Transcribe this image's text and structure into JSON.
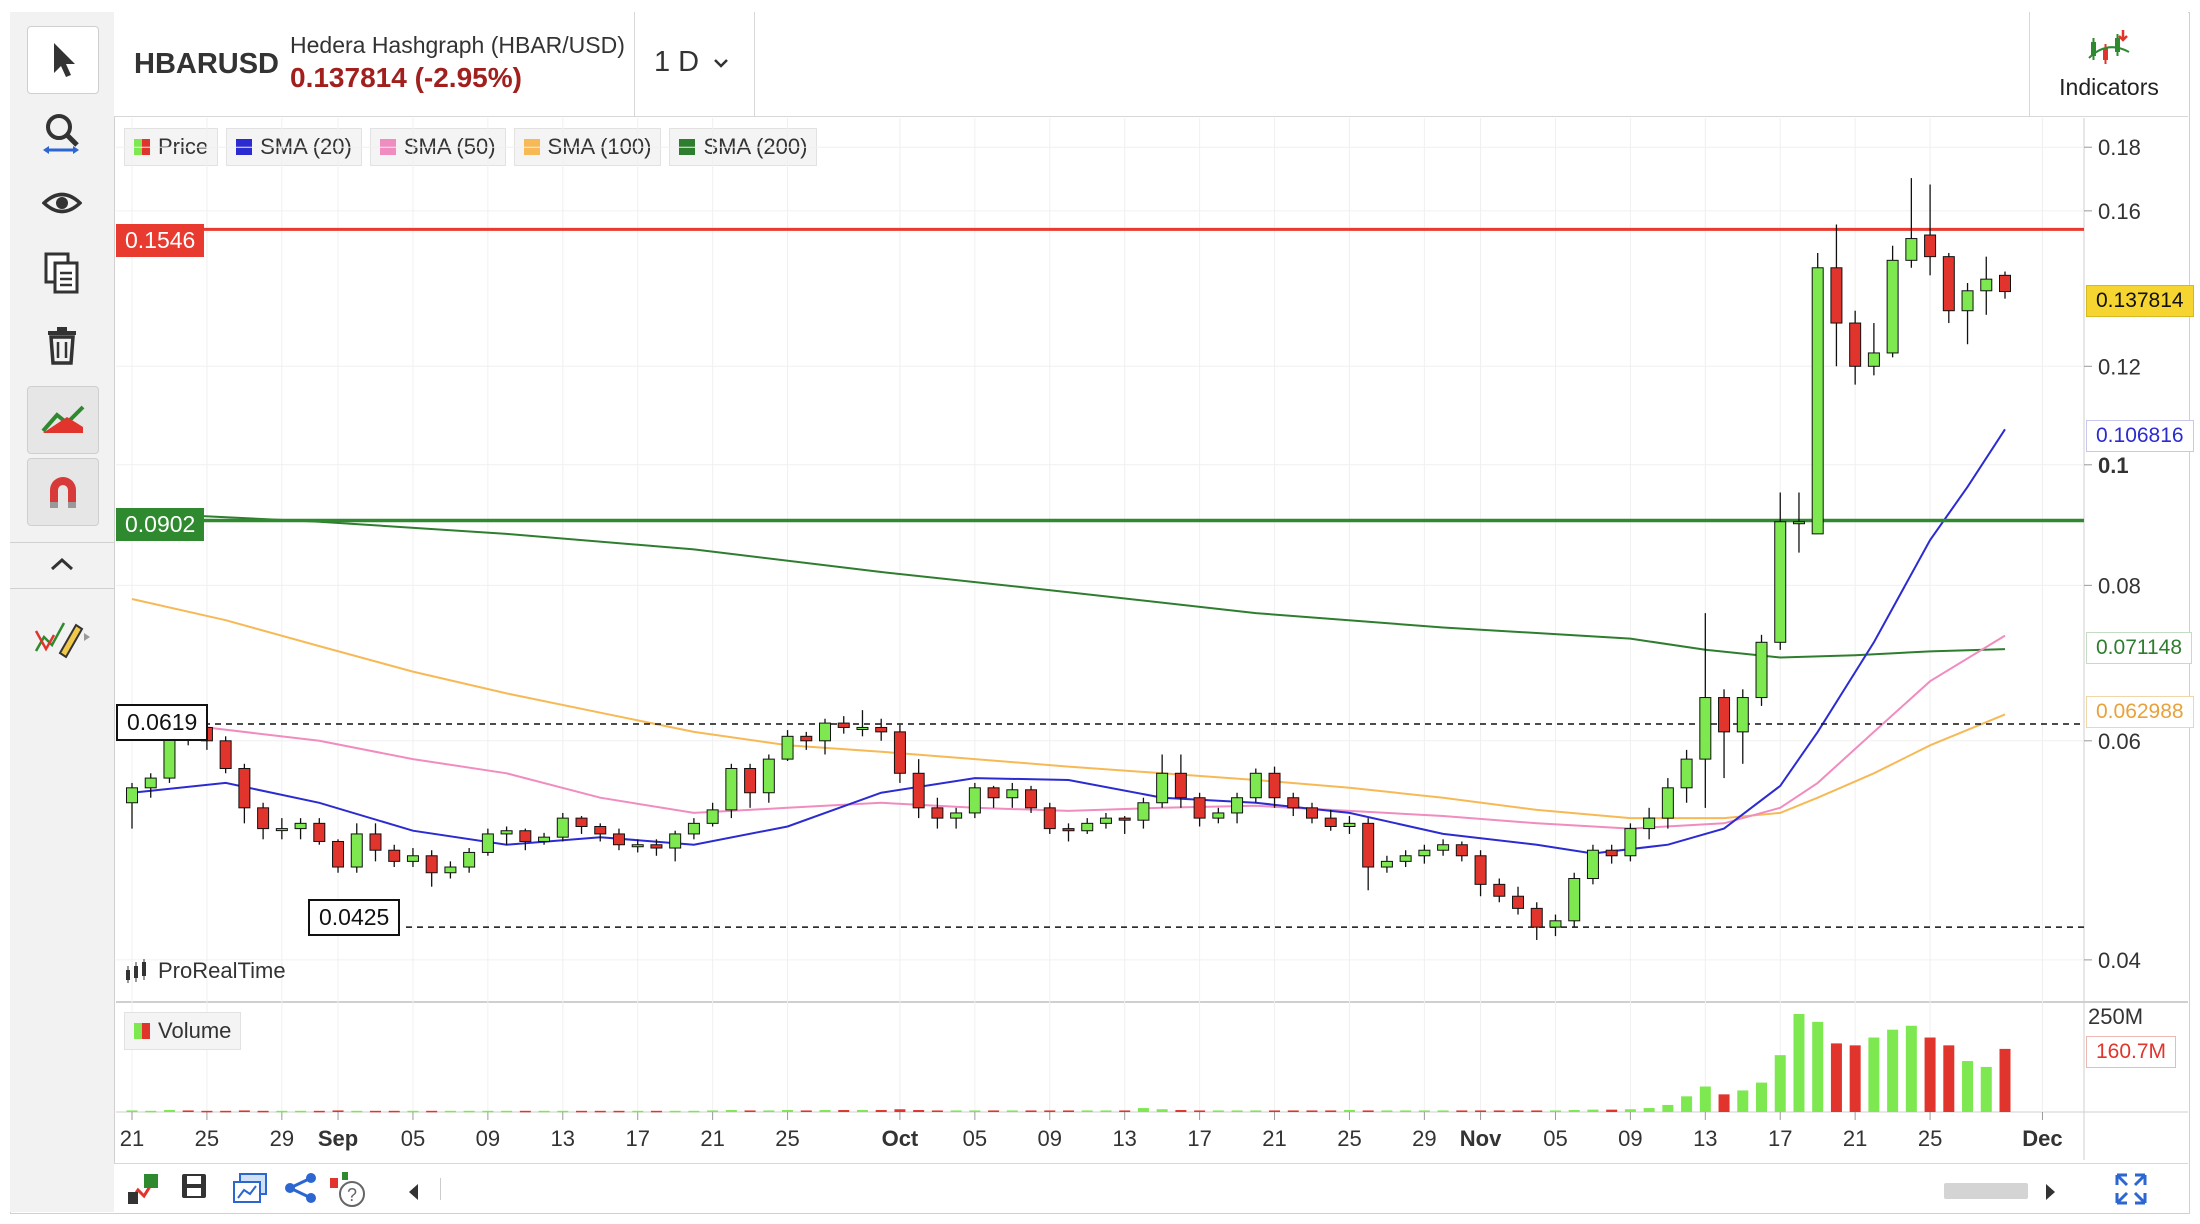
{
  "header": {
    "symbol": "HBARUSD",
    "name": "Hedera Hashgraph (HBAR/USD)",
    "quote": "0.137814 (-2.95%)",
    "period": "1 D",
    "indicators_label": "Indicators"
  },
  "toolbar": {
    "tools": [
      "pointer-icon",
      "zoom-icon",
      "eye-icon",
      "copy-icon",
      "trash-icon",
      "trend-icon",
      "magnet-icon",
      "collapse-icon",
      "drawing-icon"
    ]
  },
  "legend": [
    {
      "label": "Price",
      "color": "#3cb73c"
    },
    {
      "label": "SMA (20)",
      "color": "#2b2bd1"
    },
    {
      "label": "SMA (50)",
      "color": "#f08cc0"
    },
    {
      "label": "SMA (100)",
      "color": "#f7b955"
    },
    {
      "label": "SMA (200)",
      "color": "#2f7d2f"
    }
  ],
  "levels": {
    "resistance": "0.1546",
    "support": "0.0902",
    "dashed_high": "0.0619",
    "dashed_low": "0.0425"
  },
  "right_tags": {
    "last": "0.137814",
    "sma20": "0.106816",
    "sma200": "0.071148",
    "sma100": "0.062988"
  },
  "brand": "ProRealTime",
  "volume": {
    "label": "Volume",
    "max_label": "250M",
    "last_label": "160.7M"
  },
  "colors": {
    "up": "#7de84f",
    "down": "#e0342c",
    "resistance": "#e83a2f",
    "support": "#2f8a2f",
    "quote": "#a1201d"
  },
  "chart_data": {
    "type": "candlestick",
    "y_scale": "log",
    "ylim": [
      0.037,
      0.19
    ],
    "y_ticks": [
      "0.04",
      "0.06",
      "0.08",
      "0.1",
      "0.12",
      "0.16",
      "0.18"
    ],
    "x_ticks": [
      "21",
      "25",
      "29",
      "Sep",
      "05",
      "09",
      "13",
      "17",
      "21",
      "25",
      "Oct",
      "05",
      "09",
      "13",
      "17",
      "21",
      "25",
      "29",
      "Nov",
      "05",
      "09",
      "13",
      "17",
      "21",
      "25",
      "Dec"
    ],
    "x_tick_days": [
      0,
      4,
      8,
      11,
      15,
      19,
      23,
      27,
      31,
      35,
      41,
      45,
      49,
      53,
      57,
      61,
      65,
      69,
      72,
      76,
      80,
      84,
      88,
      92,
      96,
      102
    ],
    "candles": [
      [
        0,
        0.0535,
        0.055,
        0.051,
        0.0555
      ],
      [
        1,
        0.055,
        0.056,
        0.054,
        0.0565
      ],
      [
        2,
        0.056,
        0.062,
        0.0555,
        0.0625
      ],
      [
        3,
        0.062,
        0.0615,
        0.0595,
        0.063
      ],
      [
        4,
        0.0615,
        0.06,
        0.059,
        0.062
      ],
      [
        5,
        0.06,
        0.057,
        0.0565,
        0.0605
      ],
      [
        6,
        0.057,
        0.053,
        0.0515,
        0.0575
      ],
      [
        7,
        0.053,
        0.051,
        0.05,
        0.0535
      ],
      [
        8,
        0.051,
        0.051,
        0.05,
        0.052
      ],
      [
        9,
        0.051,
        0.0515,
        0.05,
        0.052
      ],
      [
        10,
        0.0515,
        0.0498,
        0.0495,
        0.052
      ],
      [
        11,
        0.0498,
        0.0475,
        0.047,
        0.05
      ],
      [
        12,
        0.0475,
        0.0505,
        0.047,
        0.0515
      ],
      [
        13,
        0.0505,
        0.049,
        0.048,
        0.0515
      ],
      [
        14,
        0.049,
        0.048,
        0.0475,
        0.0495
      ],
      [
        15,
        0.048,
        0.0485,
        0.0475,
        0.0492
      ],
      [
        16,
        0.0485,
        0.047,
        0.0458,
        0.049
      ],
      [
        17,
        0.047,
        0.0475,
        0.0465,
        0.048
      ],
      [
        18,
        0.0475,
        0.0488,
        0.047,
        0.0492
      ],
      [
        19,
        0.0488,
        0.0505,
        0.0485,
        0.051
      ],
      [
        20,
        0.0505,
        0.0508,
        0.0495,
        0.0512
      ],
      [
        21,
        0.0508,
        0.0498,
        0.049,
        0.051
      ],
      [
        22,
        0.0498,
        0.0502,
        0.0495,
        0.0506
      ],
      [
        23,
        0.0502,
        0.052,
        0.0498,
        0.0525
      ],
      [
        24,
        0.052,
        0.0512,
        0.0505,
        0.0522
      ],
      [
        25,
        0.0512,
        0.0505,
        0.0498,
        0.0515
      ],
      [
        26,
        0.0505,
        0.0495,
        0.049,
        0.051
      ],
      [
        27,
        0.0495,
        0.0495,
        0.0488,
        0.05
      ],
      [
        28,
        0.0495,
        0.0492,
        0.0485,
        0.05
      ],
      [
        29,
        0.0492,
        0.0505,
        0.048,
        0.0508
      ],
      [
        30,
        0.0505,
        0.0515,
        0.05,
        0.052
      ],
      [
        31,
        0.0515,
        0.0528,
        0.0512,
        0.0535
      ],
      [
        32,
        0.0528,
        0.057,
        0.052,
        0.0575
      ],
      [
        33,
        0.057,
        0.0545,
        0.053,
        0.0575
      ],
      [
        34,
        0.0545,
        0.058,
        0.0535,
        0.0585
      ],
      [
        35,
        0.058,
        0.0605,
        0.0578,
        0.0612
      ],
      [
        36,
        0.0605,
        0.06,
        0.059,
        0.061
      ],
      [
        37,
        0.06,
        0.062,
        0.0585,
        0.0625
      ],
      [
        38,
        0.062,
        0.0615,
        0.0608,
        0.0628
      ],
      [
        39,
        0.0615,
        0.0615,
        0.0605,
        0.0635
      ],
      [
        40,
        0.0615,
        0.061,
        0.06,
        0.0625
      ],
      [
        41,
        0.061,
        0.0565,
        0.0555,
        0.0618
      ],
      [
        42,
        0.0565,
        0.053,
        0.052,
        0.058
      ],
      [
        43,
        0.053,
        0.052,
        0.051,
        0.054
      ],
      [
        44,
        0.052,
        0.0525,
        0.051,
        0.053
      ],
      [
        45,
        0.0525,
        0.055,
        0.052,
        0.0555
      ],
      [
        46,
        0.055,
        0.054,
        0.053,
        0.0552
      ],
      [
        47,
        0.054,
        0.0548,
        0.053,
        0.0555
      ],
      [
        48,
        0.0548,
        0.053,
        0.0525,
        0.0552
      ],
      [
        49,
        0.053,
        0.051,
        0.0505,
        0.0535
      ],
      [
        50,
        0.051,
        0.0508,
        0.0498,
        0.0515
      ],
      [
        51,
        0.0508,
        0.0515,
        0.0505,
        0.052
      ],
      [
        52,
        0.0515,
        0.052,
        0.051,
        0.0525
      ],
      [
        53,
        0.052,
        0.0518,
        0.0505,
        0.0522
      ],
      [
        54,
        0.0518,
        0.0535,
        0.051,
        0.054
      ],
      [
        55,
        0.0535,
        0.0565,
        0.053,
        0.0585
      ],
      [
        56,
        0.0565,
        0.054,
        0.053,
        0.0585
      ],
      [
        57,
        0.054,
        0.052,
        0.0512,
        0.0545
      ],
      [
        58,
        0.052,
        0.0525,
        0.0515,
        0.053
      ],
      [
        59,
        0.0525,
        0.054,
        0.0515,
        0.0545
      ],
      [
        60,
        0.054,
        0.0565,
        0.0535,
        0.057
      ],
      [
        61,
        0.0565,
        0.054,
        0.053,
        0.0572
      ],
      [
        62,
        0.054,
        0.053,
        0.0522,
        0.0545
      ],
      [
        63,
        0.053,
        0.052,
        0.0515,
        0.0535
      ],
      [
        64,
        0.052,
        0.0512,
        0.0508,
        0.0528
      ],
      [
        65,
        0.0512,
        0.0515,
        0.0505,
        0.0522
      ],
      [
        66,
        0.0515,
        0.0475,
        0.0455,
        0.052
      ],
      [
        67,
        0.0475,
        0.048,
        0.047,
        0.0485
      ],
      [
        68,
        0.048,
        0.0485,
        0.0475,
        0.049
      ],
      [
        69,
        0.0485,
        0.049,
        0.0478,
        0.0495
      ],
      [
        70,
        0.049,
        0.0495,
        0.0485,
        0.05
      ],
      [
        71,
        0.0495,
        0.0485,
        0.048,
        0.0498
      ],
      [
        72,
        0.0485,
        0.046,
        0.045,
        0.049
      ],
      [
        73,
        0.046,
        0.045,
        0.0445,
        0.0465
      ],
      [
        74,
        0.045,
        0.044,
        0.0435,
        0.0458
      ],
      [
        75,
        0.044,
        0.0425,
        0.0415,
        0.0445
      ],
      [
        76,
        0.0425,
        0.043,
        0.0418,
        0.0435
      ],
      [
        77,
        0.043,
        0.0465,
        0.0425,
        0.047
      ],
      [
        78,
        0.0465,
        0.049,
        0.046,
        0.0495
      ],
      [
        79,
        0.049,
        0.0485,
        0.0478,
        0.0495
      ],
      [
        80,
        0.0485,
        0.051,
        0.048,
        0.0515
      ],
      [
        81,
        0.051,
        0.052,
        0.05,
        0.053
      ],
      [
        82,
        0.052,
        0.055,
        0.051,
        0.056
      ],
      [
        83,
        0.055,
        0.058,
        0.0535,
        0.059
      ],
      [
        84,
        0.058,
        0.065,
        0.053,
        0.076
      ],
      [
        85,
        0.065,
        0.061,
        0.056,
        0.066
      ],
      [
        86,
        0.061,
        0.065,
        0.0575,
        0.066
      ],
      [
        87,
        0.065,
        0.072,
        0.064,
        0.073
      ],
      [
        88,
        0.072,
        0.09,
        0.071,
        0.095
      ],
      [
        89,
        0.09,
        0.09,
        0.085,
        0.095
      ],
      [
        90,
        0.088,
        0.144,
        0.088,
        0.148
      ],
      [
        91,
        0.144,
        0.13,
        0.12,
        0.156
      ],
      [
        92,
        0.13,
        0.12,
        0.116,
        0.133
      ],
      [
        93,
        0.12,
        0.123,
        0.118,
        0.13
      ],
      [
        94,
        0.123,
        0.146,
        0.122,
        0.15
      ],
      [
        95,
        0.146,
        0.152,
        0.144,
        0.17
      ],
      [
        96,
        0.153,
        0.147,
        0.142,
        0.168
      ],
      [
        97,
        0.147,
        0.133,
        0.13,
        0.148
      ],
      [
        98,
        0.133,
        0.138,
        0.125,
        0.14
      ],
      [
        99,
        0.138,
        0.141,
        0.132,
        0.147
      ],
      [
        100,
        0.142,
        0.1378,
        0.136,
        0.143
      ]
    ],
    "volume_millions": [
      4,
      3,
      5,
      4,
      3,
      3,
      4,
      3,
      3,
      3,
      3,
      4,
      3,
      3,
      3,
      3,
      3,
      3,
      3,
      3,
      3,
      3,
      3,
      3,
      3,
      3,
      3,
      3,
      3,
      3,
      3,
      4,
      5,
      4,
      4,
      5,
      4,
      5,
      5,
      5,
      5,
      7,
      5,
      4,
      4,
      4,
      4,
      4,
      4,
      4,
      4,
      4,
      4,
      4,
      10,
      7,
      5,
      4,
      4,
      4,
      4,
      4,
      4,
      4,
      4,
      5,
      4,
      4,
      4,
      4,
      4,
      4,
      4,
      4,
      4,
      4,
      4,
      5,
      6,
      6,
      7,
      10,
      18,
      40,
      65,
      45,
      55,
      75,
      145,
      250,
      230,
      175,
      170,
      190,
      210,
      220,
      190,
      170,
      130,
      115,
      161
    ],
    "sma": {
      "sma20": [
        [
          0,
          0.0545
        ],
        [
          5,
          0.0555
        ],
        [
          10,
          0.0535
        ],
        [
          15,
          0.0508
        ],
        [
          20,
          0.0495
        ],
        [
          25,
          0.0502
        ],
        [
          30,
          0.0495
        ],
        [
          35,
          0.0512
        ],
        [
          40,
          0.0545
        ],
        [
          45,
          0.056
        ],
        [
          50,
          0.0558
        ],
        [
          55,
          0.054
        ],
        [
          60,
          0.0535
        ],
        [
          65,
          0.0525
        ],
        [
          70,
          0.0505
        ],
        [
          75,
          0.0495
        ],
        [
          78,
          0.0487
        ],
        [
          82,
          0.0495
        ],
        [
          85,
          0.051
        ],
        [
          88,
          0.0552
        ],
        [
          90,
          0.061
        ],
        [
          93,
          0.072
        ],
        [
          96,
          0.087
        ],
        [
          98,
          0.096
        ],
        [
          100,
          0.1068
        ]
      ],
      "sma50": [
        [
          4,
          0.0615
        ],
        [
          10,
          0.06
        ],
        [
          15,
          0.058
        ],
        [
          20,
          0.0565
        ],
        [
          25,
          0.054
        ],
        [
          30,
          0.0525
        ],
        [
          35,
          0.053
        ],
        [
          40,
          0.0535
        ],
        [
          45,
          0.053
        ],
        [
          50,
          0.0527
        ],
        [
          55,
          0.053
        ],
        [
          60,
          0.0532
        ],
        [
          65,
          0.0527
        ],
        [
          70,
          0.0522
        ],
        [
          75,
          0.0515
        ],
        [
          80,
          0.051
        ],
        [
          85,
          0.0515
        ],
        [
          88,
          0.053
        ],
        [
          90,
          0.0555
        ],
        [
          93,
          0.061
        ],
        [
          96,
          0.067
        ],
        [
          100,
          0.0729
        ]
      ],
      "sma100": [
        [
          0,
          0.078
        ],
        [
          5,
          0.075
        ],
        [
          10,
          0.0715
        ],
        [
          15,
          0.0682
        ],
        [
          20,
          0.0655
        ],
        [
          25,
          0.0632
        ],
        [
          30,
          0.061
        ],
        [
          35,
          0.0595
        ],
        [
          40,
          0.0588
        ],
        [
          45,
          0.058
        ],
        [
          50,
          0.0572
        ],
        [
          55,
          0.0565
        ],
        [
          60,
          0.0558
        ],
        [
          65,
          0.055
        ],
        [
          70,
          0.054
        ],
        [
          75,
          0.0528
        ],
        [
          80,
          0.052
        ],
        [
          85,
          0.052
        ],
        [
          88,
          0.0525
        ],
        [
          90,
          0.054
        ],
        [
          93,
          0.0565
        ],
        [
          96,
          0.0595
        ],
        [
          100,
          0.063
        ]
      ],
      "sma200": [
        [
          0,
          0.0915
        ],
        [
          10,
          0.09
        ],
        [
          20,
          0.088
        ],
        [
          30,
          0.0855
        ],
        [
          40,
          0.082
        ],
        [
          50,
          0.079
        ],
        [
          60,
          0.076
        ],
        [
          70,
          0.074
        ],
        [
          80,
          0.0725
        ],
        [
          84,
          0.071
        ],
        [
          88,
          0.07
        ],
        [
          92,
          0.0703
        ],
        [
          96,
          0.0708
        ],
        [
          100,
          0.0711
        ]
      ]
    }
  }
}
